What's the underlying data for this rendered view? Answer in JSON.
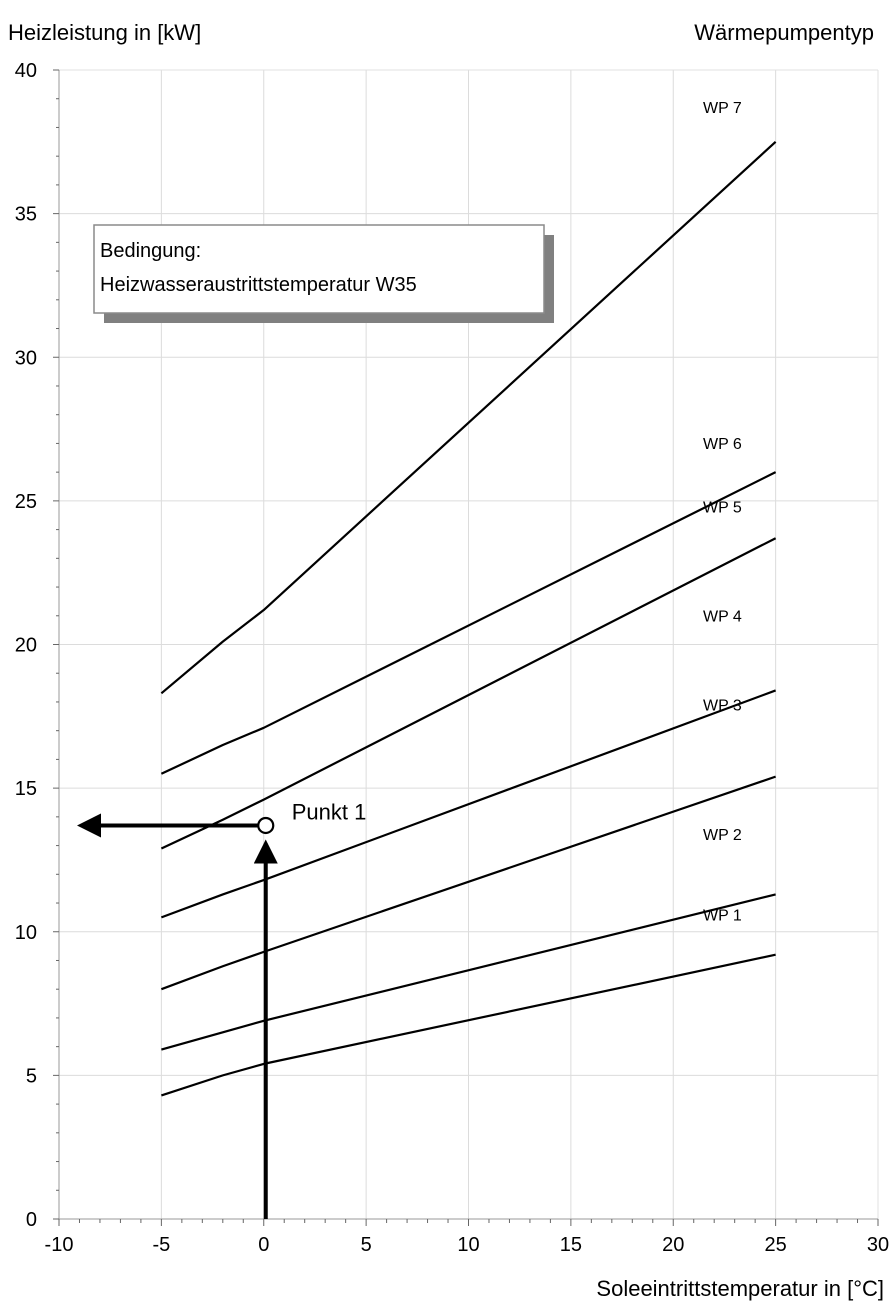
{
  "chart_data": {
    "type": "line",
    "ylabel": "Heizleistung in [kW]",
    "xlabel": "Soleeintrittstemperatur in [°C]",
    "legend_title": "Wärmepumpentyp",
    "xlim": [
      -10,
      30
    ],
    "ylim": [
      0,
      40
    ],
    "xticks": [
      -10,
      -5,
      0,
      5,
      10,
      15,
      20,
      25,
      30
    ],
    "yticks": [
      0,
      5,
      10,
      15,
      20,
      25,
      30,
      35,
      40
    ],
    "grid": true,
    "condition_box": {
      "line1": "Bedingung:",
      "line2": "Heizwasseraustrittstemperatur W35"
    },
    "series": [
      {
        "name": "WP 1",
        "x": [
          -5,
          -2,
          0,
          25
        ],
        "y": [
          4.3,
          5.0,
          5.4,
          9.2
        ]
      },
      {
        "name": "WP 2",
        "x": [
          -5,
          -2,
          0,
          25
        ],
        "y": [
          5.9,
          6.5,
          6.9,
          11.3
        ]
      },
      {
        "name": "WP 3",
        "x": [
          -5,
          -2,
          0,
          25
        ],
        "y": [
          8.0,
          8.8,
          9.3,
          15.4
        ]
      },
      {
        "name": "WP 4",
        "x": [
          -5,
          -2,
          0,
          25
        ],
        "y": [
          10.5,
          11.3,
          11.8,
          18.4
        ]
      },
      {
        "name": "WP 5",
        "x": [
          -5,
          -2,
          0,
          25
        ],
        "y": [
          12.9,
          13.9,
          14.6,
          23.7
        ]
      },
      {
        "name": "WP 6",
        "x": [
          -5,
          -2,
          0,
          25
        ],
        "y": [
          15.5,
          16.5,
          17.1,
          26.0
        ]
      },
      {
        "name": "WP 7",
        "x": [
          -5,
          -2,
          0,
          25
        ],
        "y": [
          18.3,
          20.1,
          21.2,
          37.5
        ]
      }
    ],
    "annotation": {
      "label": "Punkt 1",
      "x": 0,
      "y": 13.7
    }
  }
}
